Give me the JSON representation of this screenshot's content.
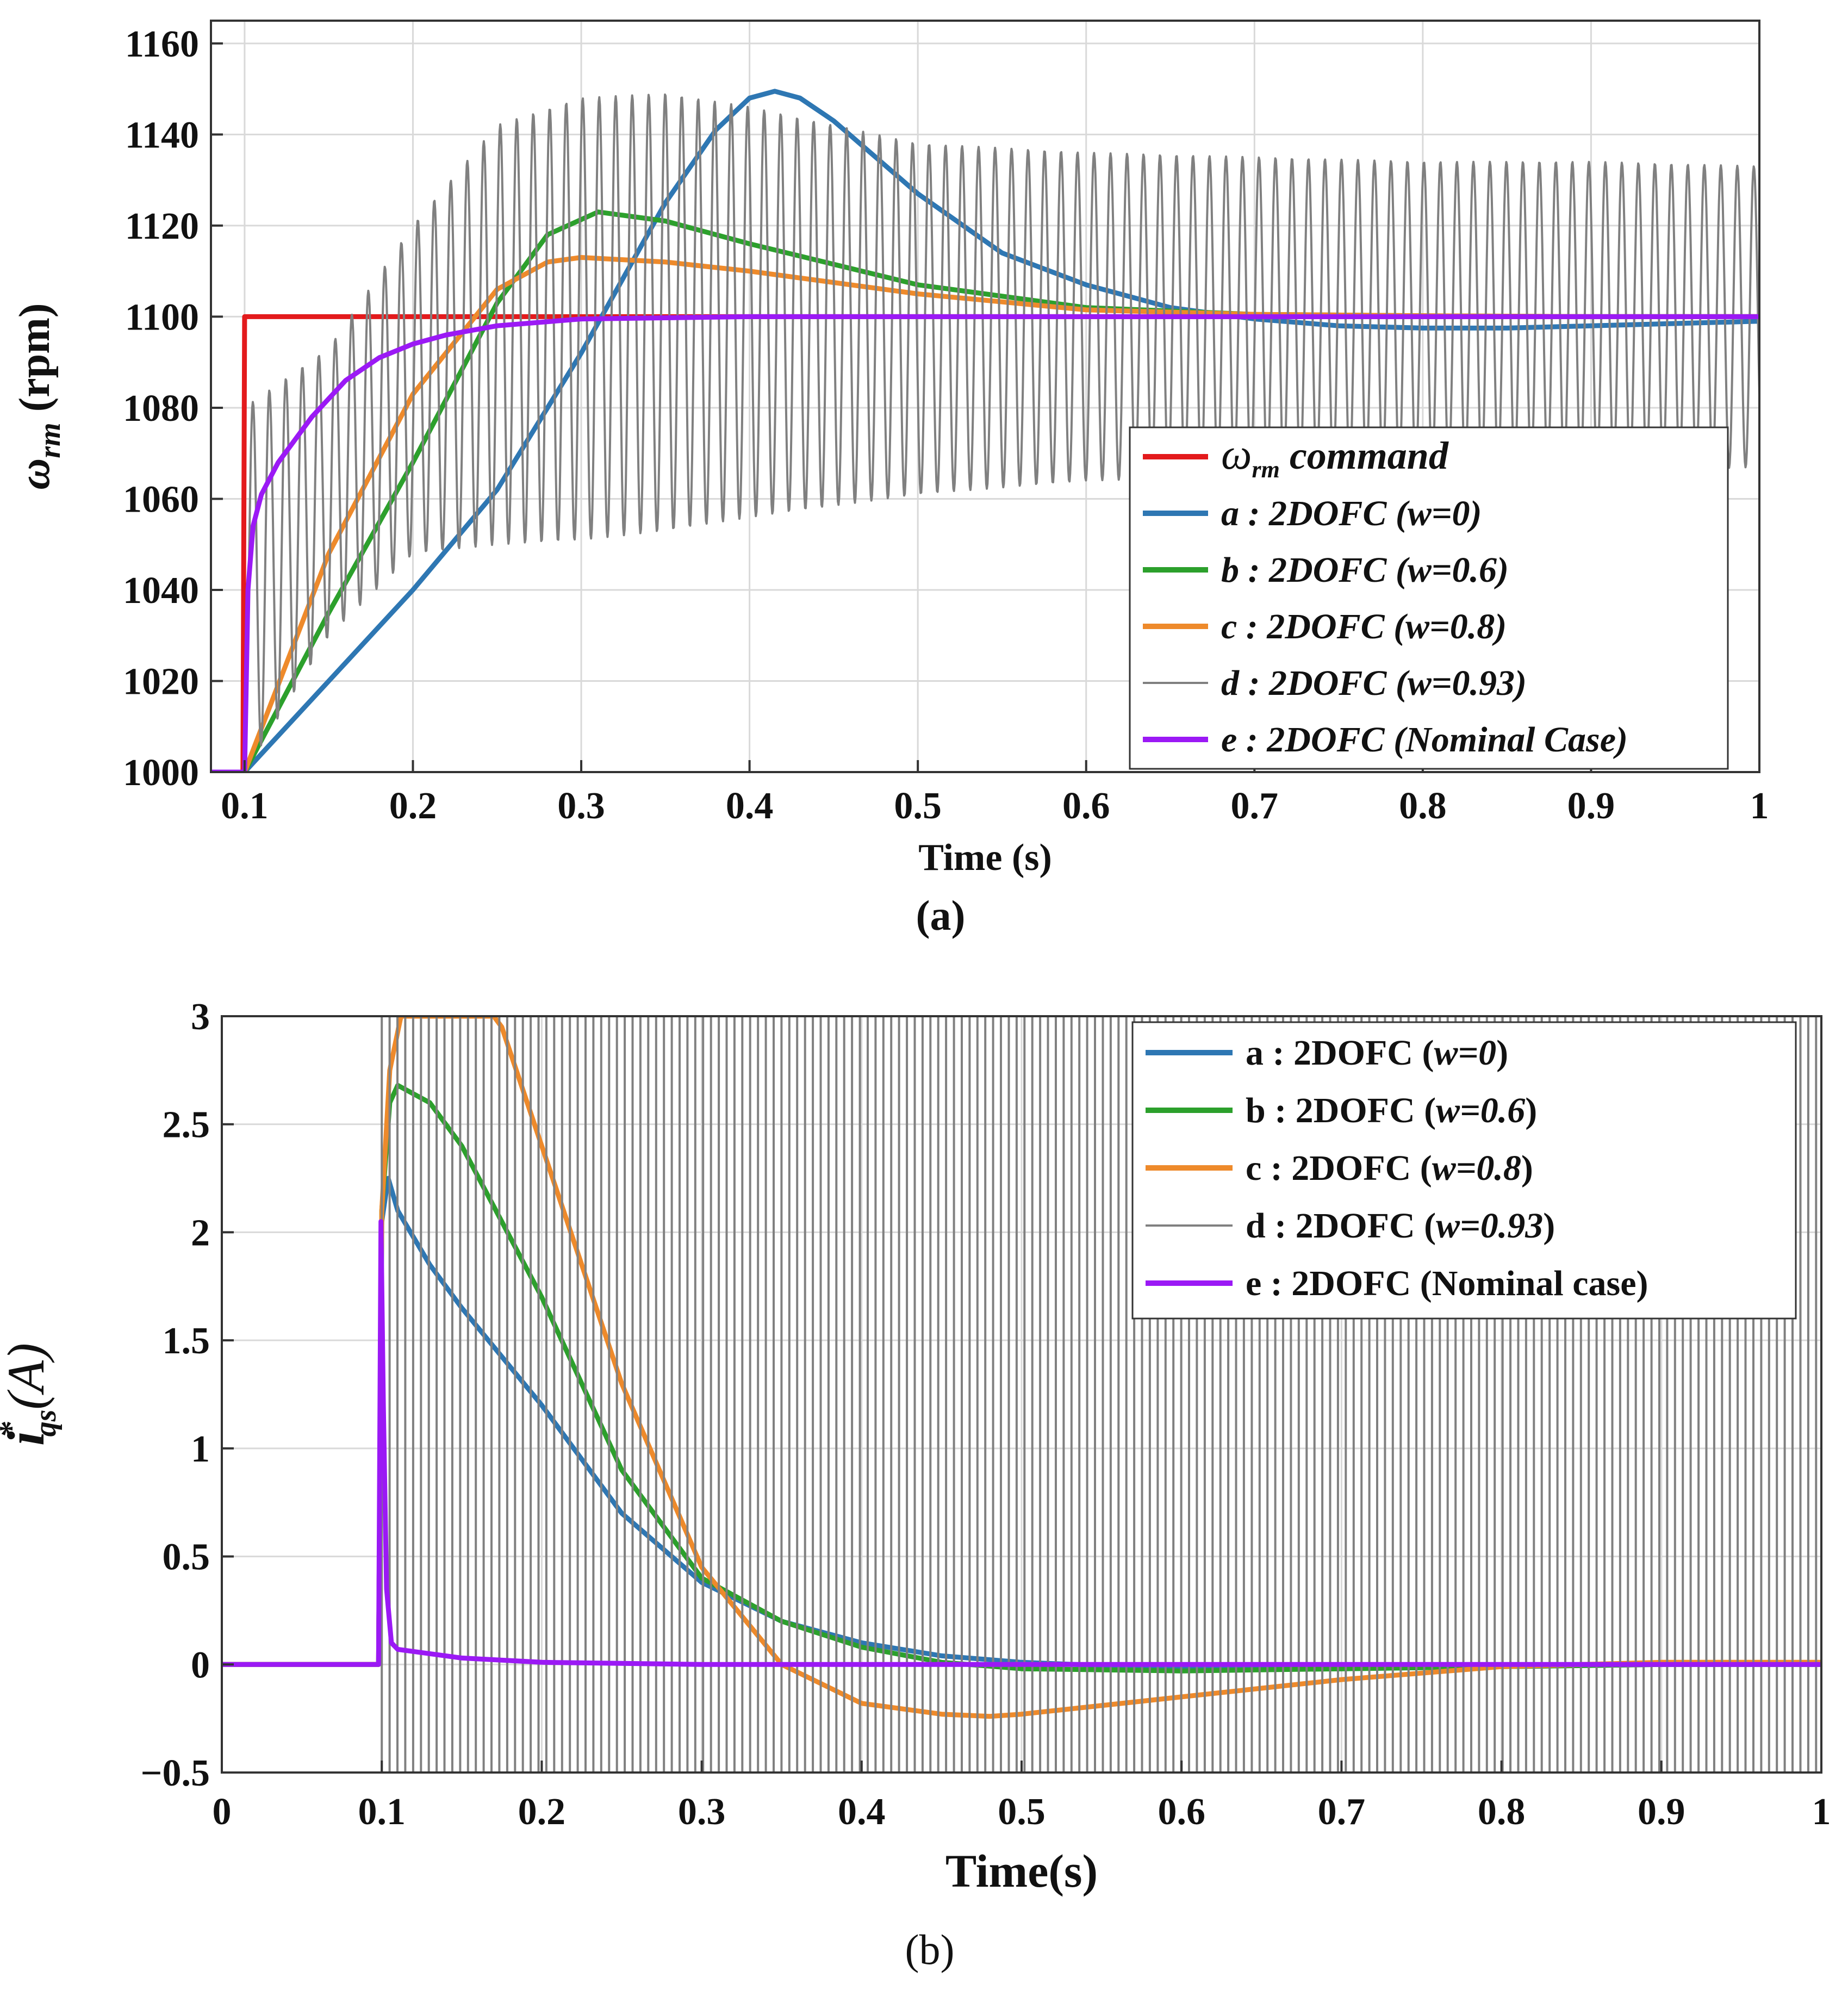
{
  "chart_data": [
    {
      "panel": "(a)",
      "type": "line",
      "xlabel": "Time (s)",
      "ylabel": "ω_rm (rpm)",
      "ylabel_symbol": "ω",
      "ylabel_sub": "rm",
      "ylabel_rest": " (rpm)",
      "xlim": [
        0.08,
        1.0
      ],
      "ylim": [
        1000,
        1165
      ],
      "xticks": [
        0.1,
        0.2,
        0.3,
        0.4,
        0.5,
        0.6,
        0.7,
        0.8,
        0.9,
        1.0
      ],
      "xtick_labels": [
        "0.1",
        "0.2",
        "0.3",
        "0.4",
        "0.5",
        "0.6",
        "0.7",
        "0.8",
        "0.9",
        "1"
      ],
      "yticks": [
        1000,
        1020,
        1040,
        1060,
        1080,
        1100,
        1120,
        1140,
        1160
      ],
      "ytick_labels": [
        "1000",
        "1020",
        "1040",
        "1060",
        "1080",
        "1100",
        "1120",
        "1140",
        "1160"
      ],
      "grid": true,
      "legend_position": "lower-right",
      "series": [
        {
          "key": "cmd",
          "name": "ω_rm command",
          "symbol": "ω",
          "sub": "rm",
          "rest": " command",
          "color": "#e31a1c",
          "x": [
            0.08,
            0.099,
            0.1,
            1.0
          ],
          "y": [
            1000,
            1000,
            1100,
            1100
          ]
        },
        {
          "key": "a",
          "name": "a : 2DOFC (w=0)",
          "color": "#2e77b3",
          "x": [
            0.08,
            0.1,
            0.15,
            0.2,
            0.25,
            0.3,
            0.35,
            0.38,
            0.4,
            0.415,
            0.43,
            0.45,
            0.5,
            0.55,
            0.6,
            0.65,
            0.7,
            0.75,
            0.8,
            0.85,
            0.9,
            0.95,
            1.0
          ],
          "y": [
            1000,
            1000,
            1020,
            1040,
            1062,
            1092,
            1125,
            1141,
            1148,
            1149.5,
            1148,
            1143,
            1127,
            1114,
            1107,
            1102,
            1099.5,
            1098,
            1097.5,
            1097.5,
            1098,
            1098.5,
            1099
          ]
        },
        {
          "key": "b",
          "name": "b : 2DOFC (w=0.6)",
          "color": "#2ca02c",
          "x": [
            0.08,
            0.1,
            0.15,
            0.2,
            0.25,
            0.28,
            0.31,
            0.35,
            0.4,
            0.5,
            0.6,
            0.7,
            0.8,
            0.9,
            1.0
          ],
          "y": [
            1000,
            1000,
            1035,
            1068,
            1103,
            1118,
            1123,
            1121,
            1116,
            1107,
            1102,
            1100.5,
            1100.2,
            1100,
            1100
          ]
        },
        {
          "key": "c",
          "name": "c : 2DOFC (w=0.8)",
          "color": "#ee8a2b",
          "x": [
            0.08,
            0.1,
            0.15,
            0.2,
            0.25,
            0.28,
            0.3,
            0.35,
            0.4,
            0.5,
            0.6,
            0.7,
            0.8,
            0.9,
            1.0
          ],
          "y": [
            1000,
            1000,
            1048,
            1083,
            1106,
            1112,
            1113,
            1112,
            1110,
            1105,
            1101.5,
            1100.5,
            1100.2,
            1100,
            1100
          ]
        },
        {
          "key": "d",
          "name": "d : 2DOFC (w=0.93)",
          "color": "#808080",
          "style": "oscillating",
          "osc_period": 0.0098,
          "osc_start": 0.1,
          "x": [
            0.1,
            0.15,
            0.2,
            0.25,
            0.3,
            0.35,
            0.4,
            0.5,
            0.6,
            0.7,
            0.8,
            0.9,
            1.0
          ],
          "y_upper": [
            1080,
            1093,
            1120,
            1142,
            1148,
            1149,
            1146,
            1138,
            1136,
            1135,
            1134,
            1134,
            1133
          ],
          "y_lower": [
            1000,
            1030,
            1048,
            1050,
            1051,
            1053,
            1056,
            1061,
            1064,
            1065,
            1066,
            1066,
            1067
          ]
        },
        {
          "key": "e",
          "name": "e : 2DOFC (Nominal Case)",
          "color": "#9b19f5",
          "x": [
            0.08,
            0.1,
            0.102,
            0.105,
            0.11,
            0.12,
            0.14,
            0.16,
            0.18,
            0.2,
            0.22,
            0.25,
            0.3,
            0.4,
            0.5,
            1.0
          ],
          "y": [
            1000,
            1000,
            1040,
            1054,
            1061,
            1068,
            1078,
            1086,
            1091,
            1094,
            1096,
            1098,
            1099.5,
            1100,
            1100,
            1100
          ]
        }
      ]
    },
    {
      "panel": "(b)",
      "type": "line",
      "xlabel": "Time(s)",
      "ylabel": "i*_qs(A)",
      "ylabel_symbol": "i",
      "ylabel_sup": "*",
      "ylabel_sub": "qs",
      "ylabel_rest": "(A)",
      "xlim": [
        0,
        1.0
      ],
      "ylim": [
        -0.5,
        3.0
      ],
      "xticks": [
        0,
        0.1,
        0.2,
        0.3,
        0.4,
        0.5,
        0.6,
        0.7,
        0.8,
        0.9,
        1.0
      ],
      "xtick_labels": [
        "0",
        "0.1",
        "0.2",
        "0.3",
        "0.4",
        "0.5",
        "0.6",
        "0.7",
        "0.8",
        "0.9",
        "1"
      ],
      "yticks": [
        -0.5,
        0,
        0.5,
        1,
        1.5,
        2,
        2.5,
        3
      ],
      "ytick_labels": [
        "−0.5",
        "0",
        "0.5",
        "1",
        "1.5",
        "2",
        "2.5",
        "3"
      ],
      "grid": true,
      "legend_position": "top-right",
      "series": [
        {
          "key": "a",
          "name": "a : 2DOFC (w=0)",
          "prefix": "a : 2DOFC (",
          "param": "w=0",
          "suffix": ")",
          "color": "#2e77b3",
          "x": [
            0,
            0.098,
            0.1,
            0.104,
            0.11,
            0.13,
            0.15,
            0.2,
            0.25,
            0.3,
            0.35,
            0.4,
            0.45,
            0.5,
            0.6,
            0.7,
            0.8,
            0.9,
            1.0
          ],
          "y": [
            0,
            0,
            2.05,
            2.25,
            2.1,
            1.85,
            1.65,
            1.2,
            0.7,
            0.38,
            0.2,
            0.1,
            0.04,
            0.01,
            -0.02,
            -0.02,
            -0.01,
            0,
            0
          ]
        },
        {
          "key": "b",
          "name": "b : 2DOFC (w=0.6)",
          "prefix": "b : 2DOFC (",
          "param": "w=0.6",
          "suffix": ")",
          "color": "#2ca02c",
          "x": [
            0,
            0.098,
            0.1,
            0.105,
            0.11,
            0.13,
            0.15,
            0.2,
            0.25,
            0.3,
            0.35,
            0.4,
            0.45,
            0.5,
            0.6,
            0.7,
            0.8,
            0.9,
            1.0
          ],
          "y": [
            0,
            0,
            2.1,
            2.6,
            2.68,
            2.6,
            2.4,
            1.7,
            0.9,
            0.4,
            0.2,
            0.08,
            0.01,
            -0.02,
            -0.03,
            -0.02,
            -0.01,
            0,
            0
          ]
        },
        {
          "key": "c",
          "name": "c : 2DOFC (w=0.8)",
          "prefix": "c : 2DOFC (",
          "param": "w=0.8",
          "suffix": ")",
          "color": "#ee8a2b",
          "x": [
            0,
            0.098,
            0.1,
            0.105,
            0.112,
            0.12,
            0.17,
            0.175,
            0.2,
            0.25,
            0.3,
            0.35,
            0.4,
            0.45,
            0.48,
            0.5,
            0.6,
            0.7,
            0.8,
            0.9,
            1.0
          ],
          "y": [
            0,
            0,
            2.1,
            2.75,
            3.0,
            3.0,
            3.0,
            2.95,
            2.4,
            1.3,
            0.45,
            0.0,
            -0.18,
            -0.23,
            -0.24,
            -0.23,
            -0.15,
            -0.07,
            -0.01,
            0.01,
            0.01
          ]
        },
        {
          "key": "d",
          "name": "d : 2DOFC (w=0.93)",
          "prefix": "d : 2DOFC (",
          "param": "w=0.93",
          "suffix": ")",
          "color": "#808080",
          "style": "square-wave",
          "high": 3.0,
          "low": -0.5,
          "period": 0.0098,
          "start": 0.1
        },
        {
          "key": "e",
          "name": "e : 2DOFC (Nominal case)",
          "prefix": "e : 2DOFC (Nominal case)",
          "param": "",
          "suffix": "",
          "color": "#9b19f5",
          "x": [
            0,
            0.098,
            0.0995,
            0.101,
            0.103,
            0.106,
            0.11,
            0.15,
            0.2,
            0.3,
            0.5,
            1.0
          ],
          "y": [
            0,
            0,
            2.05,
            1.2,
            0.35,
            0.1,
            0.07,
            0.03,
            0.01,
            0.0,
            0.0,
            0.0
          ]
        }
      ]
    }
  ],
  "panel_labels": [
    "(a)",
    "(b)"
  ]
}
